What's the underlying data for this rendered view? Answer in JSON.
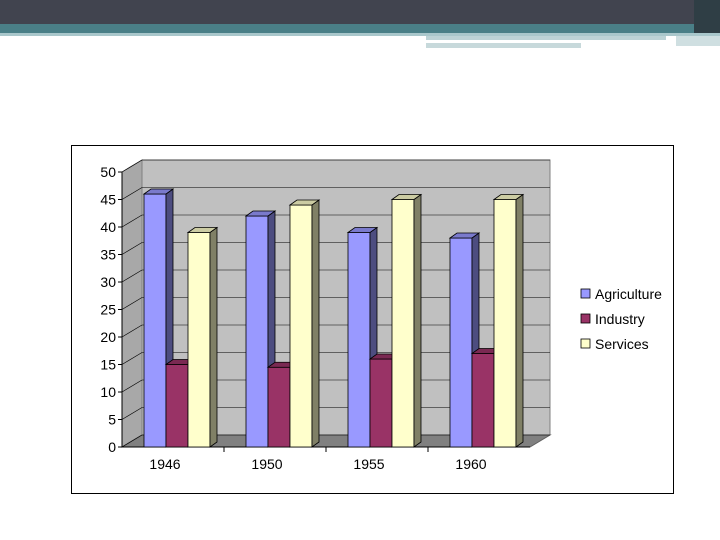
{
  "chart_data": {
    "type": "bar",
    "categories": [
      "1946",
      "1950",
      "1955",
      "1960"
    ],
    "series": [
      {
        "name": "Agriculture",
        "values": [
          46,
          42,
          39,
          38
        ],
        "color": "#9999ff",
        "side_color": "#4d4d80",
        "top_color": "#7a7acc"
      },
      {
        "name": "Industry",
        "values": [
          15,
          14.5,
          16,
          17
        ],
        "color": "#993366",
        "side_color": "#4d1a33",
        "top_color": "#7a2952"
      },
      {
        "name": "Services",
        "values": [
          39,
          44,
          45,
          45
        ],
        "color": "#ffffcc",
        "side_color": "#808066",
        "top_color": "#cccca3"
      }
    ],
    "ylim": [
      0,
      50
    ],
    "yticks": [
      "0",
      "5",
      "10",
      "15",
      "20",
      "25",
      "30",
      "35",
      "40",
      "45",
      "50"
    ],
    "title": "",
    "xlabel": "",
    "ylabel": "",
    "legend_position": "right",
    "grid": true,
    "plot_wall_color": "#c0c0c0",
    "floor_color": "#808080"
  }
}
